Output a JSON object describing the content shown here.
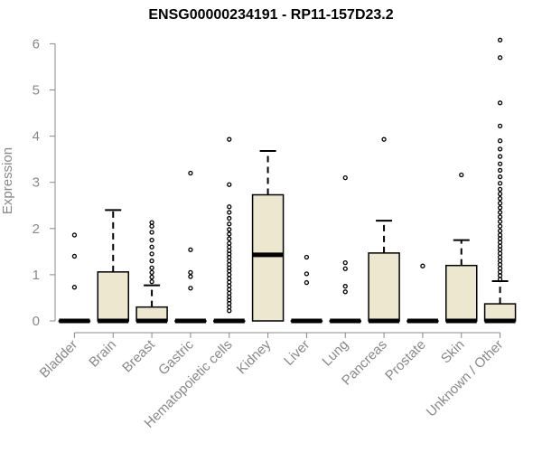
{
  "chart_data": {
    "type": "boxplot",
    "title": "ENSG00000234191 - RP11-157D23.2",
    "xlabel": "",
    "ylabel": "Expression",
    "ylim": [
      0,
      6.2
    ],
    "yticks": [
      0,
      1,
      2,
      3,
      4,
      5,
      6
    ],
    "grid": false,
    "box_fill": "#ede7cf",
    "box_stroke": "#000000",
    "axis_color": "#888888",
    "categories": [
      "Bladder",
      "Brain",
      "Breast",
      "Gastric",
      "Hematopoietic cells",
      "Kidney",
      "Liver",
      "Lung",
      "Pancreas",
      "Prostate",
      "Skin",
      "Unknown / Other"
    ],
    "boxes": [
      {
        "q1": 0,
        "median": 0,
        "q3": 0,
        "whisker_low": 0,
        "whisker_high": 0,
        "outliers": [
          0.73,
          1.4,
          1.86
        ]
      },
      {
        "q1": 0,
        "median": 0,
        "q3": 1.06,
        "whisker_low": 0,
        "whisker_high": 2.4,
        "outliers": []
      },
      {
        "q1": 0,
        "median": 0,
        "q3": 0.3,
        "whisker_low": 0,
        "whisker_high": 0.77,
        "outliers": [
          0.85,
          0.95,
          1.05,
          1.15,
          1.3,
          1.45,
          1.6,
          1.75,
          1.92,
          2.05,
          2.13
        ]
      },
      {
        "q1": 0,
        "median": 0,
        "q3": 0,
        "whisker_low": 0,
        "whisker_high": 0,
        "outliers": [
          0.71,
          0.96,
          1.05,
          1.54,
          3.2
        ]
      },
      {
        "q1": 0,
        "median": 0,
        "q3": 0,
        "whisker_low": 0,
        "whisker_high": 0,
        "outliers": [
          0.22,
          0.3,
          0.38,
          0.45,
          0.52,
          0.6,
          0.68,
          0.76,
          0.84,
          0.92,
          1.0,
          1.08,
          1.15,
          1.22,
          1.3,
          1.38,
          1.45,
          1.52,
          1.6,
          1.68,
          1.78,
          1.88,
          1.98,
          2.1,
          2.22,
          2.35,
          2.47,
          2.95,
          3.93
        ]
      },
      {
        "q1": 0,
        "median": 1.43,
        "q3": 2.73,
        "whisker_low": 0,
        "whisker_high": 3.68,
        "outliers": []
      },
      {
        "q1": 0,
        "median": 0,
        "q3": 0,
        "whisker_low": 0,
        "whisker_high": 0,
        "outliers": [
          0.83,
          1.02,
          1.38
        ]
      },
      {
        "q1": 0,
        "median": 0,
        "q3": 0,
        "whisker_low": 0,
        "whisker_high": 0,
        "outliers": [
          0.63,
          0.75,
          1.13,
          1.26,
          3.1
        ]
      },
      {
        "q1": 0,
        "median": 0,
        "q3": 1.47,
        "whisker_low": 0,
        "whisker_high": 2.17,
        "outliers": [
          3.93
        ]
      },
      {
        "q1": 0,
        "median": 0,
        "q3": 0,
        "whisker_low": 0,
        "whisker_high": 0,
        "outliers": [
          1.19
        ]
      },
      {
        "q1": 0,
        "median": 0,
        "q3": 1.2,
        "whisker_low": 0,
        "whisker_high": 1.75,
        "outliers": [
          3.16
        ]
      },
      {
        "q1": 0,
        "median": 0,
        "q3": 0.37,
        "whisker_low": 0,
        "whisker_high": 0.86,
        "outliers": [
          0.9,
          0.98,
          1.06,
          1.14,
          1.22,
          1.3,
          1.38,
          1.46,
          1.54,
          1.62,
          1.7,
          1.78,
          1.86,
          1.95,
          2.05,
          2.15,
          2.25,
          2.35,
          2.45,
          2.55,
          2.65,
          2.75,
          2.85,
          2.98,
          3.12,
          3.26,
          3.4,
          3.56,
          3.72,
          3.9,
          4.22,
          4.72,
          5.7,
          6.08
        ]
      }
    ]
  }
}
